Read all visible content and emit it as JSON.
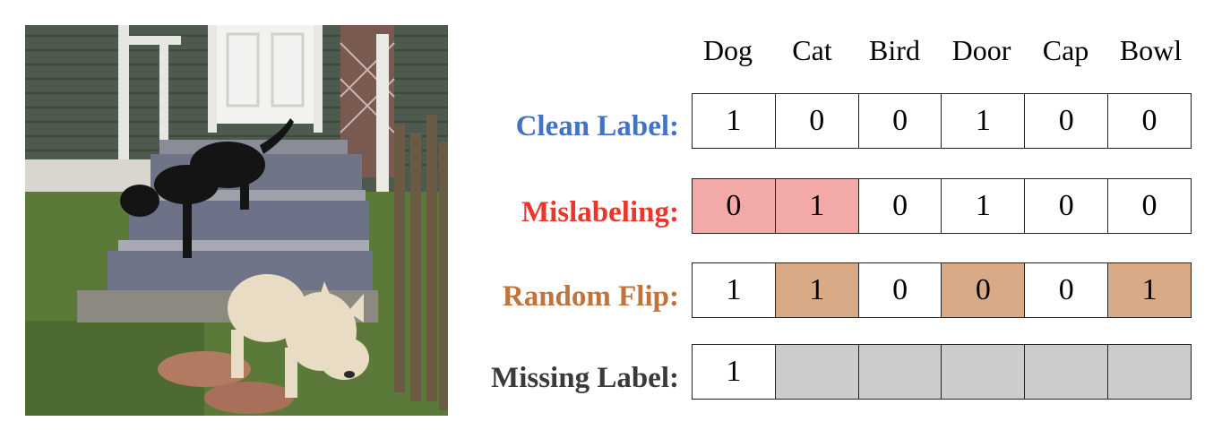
{
  "categories": [
    "Dog",
    "Cat",
    "Bird",
    "Door",
    "Cap",
    "Bowl"
  ],
  "rows": [
    {
      "label": "Clean Label:",
      "color": "#4472c4",
      "values": [
        "1",
        "0",
        "0",
        "1",
        "0",
        "0"
      ],
      "highlight": [],
      "highlight_type": ""
    },
    {
      "label": "Mislabeling:",
      "color": "#e8372c",
      "values": [
        "0",
        "1",
        "0",
        "1",
        "0",
        "0"
      ],
      "highlight": [
        0,
        1
      ],
      "highlight_type": "noise-mis"
    },
    {
      "label": "Random Flip:",
      "color": "#c0733b",
      "values": [
        "1",
        "1",
        "0",
        "0",
        "0",
        "1"
      ],
      "highlight": [
        1,
        3,
        5
      ],
      "highlight_type": "noise-flip"
    },
    {
      "label": "Missing Label:",
      "color": "#3a3a3a",
      "values": [
        "1",
        "",
        "",
        "",
        "",
        ""
      ],
      "highlight": [
        1,
        2,
        3,
        4,
        5
      ],
      "highlight_type": "missing"
    }
  ],
  "colors": {
    "mislabel_fill": "#f2a9a8",
    "flip_fill": "#d9aa86",
    "missing_fill": "#cccccc"
  }
}
